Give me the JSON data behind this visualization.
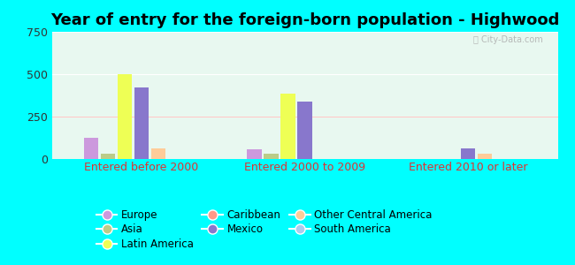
{
  "title": "Year of entry for the foreign-born population - Highwood",
  "categories": [
    "Entered before 2000",
    "Entered 2000 to 2009",
    "Entered 2010 or later"
  ],
  "series": {
    "Europe": [
      125,
      55,
      0
    ],
    "Caribbean": [
      0,
      0,
      0
    ],
    "South America": [
      0,
      0,
      0
    ],
    "Asia": [
      30,
      30,
      0
    ],
    "Mexico": [
      420,
      340,
      65
    ],
    "Latin America": [
      500,
      385,
      0
    ],
    "Other Central America": [
      65,
      0,
      30
    ]
  },
  "colors": {
    "Europe": "#cc99dd",
    "Caribbean": "#ff9988",
    "South America": "#aaccee",
    "Asia": "#bbcc88",
    "Mexico": "#8877cc",
    "Latin America": "#eeff55",
    "Other Central America": "#ffcc99"
  },
  "bar_order": [
    "Europe",
    "Asia",
    "Latin America",
    "Mexico",
    "Other Central America",
    "Caribbean",
    "South America"
  ],
  "ylim": [
    0,
    750
  ],
  "yticks": [
    0,
    250,
    500,
    750
  ],
  "bg_color": "#00ffff",
  "plot_bg": "#e8f8f0",
  "title_fontsize": 13,
  "tick_fontsize": 9,
  "legend_fontsize": 8.5
}
